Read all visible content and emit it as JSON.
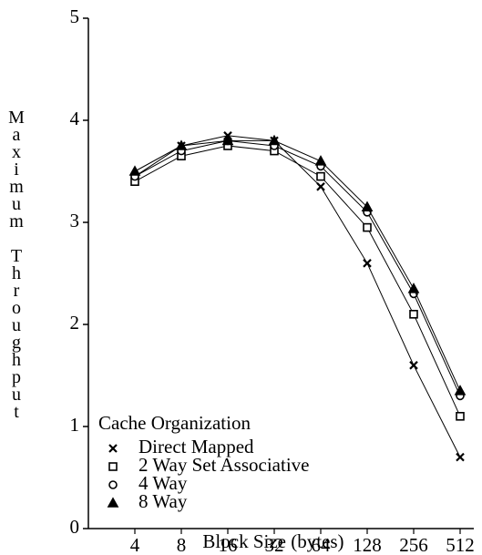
{
  "chart_data": {
    "type": "line",
    "x_label": "Block Size (bytes)",
    "y_label": "Maximum Throughput",
    "legend_title": "Cache Organization",
    "categories": [
      "4",
      "8",
      "16",
      "32",
      "64",
      "128",
      "256",
      "512"
    ],
    "series": [
      {
        "name": "Direct Mapped",
        "color": "#000000",
        "marker": "x",
        "values": [
          3.45,
          3.75,
          3.85,
          3.8,
          3.35,
          2.6,
          1.6,
          0.7
        ]
      },
      {
        "name": "2 Way Set Associative",
        "color": "#000000",
        "marker": "square",
        "values": [
          3.4,
          3.65,
          3.75,
          3.7,
          3.45,
          2.95,
          2.1,
          1.1
        ]
      },
      {
        "name": "4 Way",
        "color": "#000000",
        "marker": "circle",
        "values": [
          3.45,
          3.7,
          3.8,
          3.75,
          3.55,
          3.1,
          2.3,
          1.3
        ]
      },
      {
        "name": "8 Way",
        "color": "#000000",
        "marker": "triangle",
        "values": [
          3.5,
          3.75,
          3.8,
          3.8,
          3.6,
          3.15,
          2.35,
          1.35
        ]
      }
    ],
    "ylim": [
      0,
      5
    ],
    "yticks": [
      0,
      1,
      2,
      3,
      4,
      5
    ]
  }
}
